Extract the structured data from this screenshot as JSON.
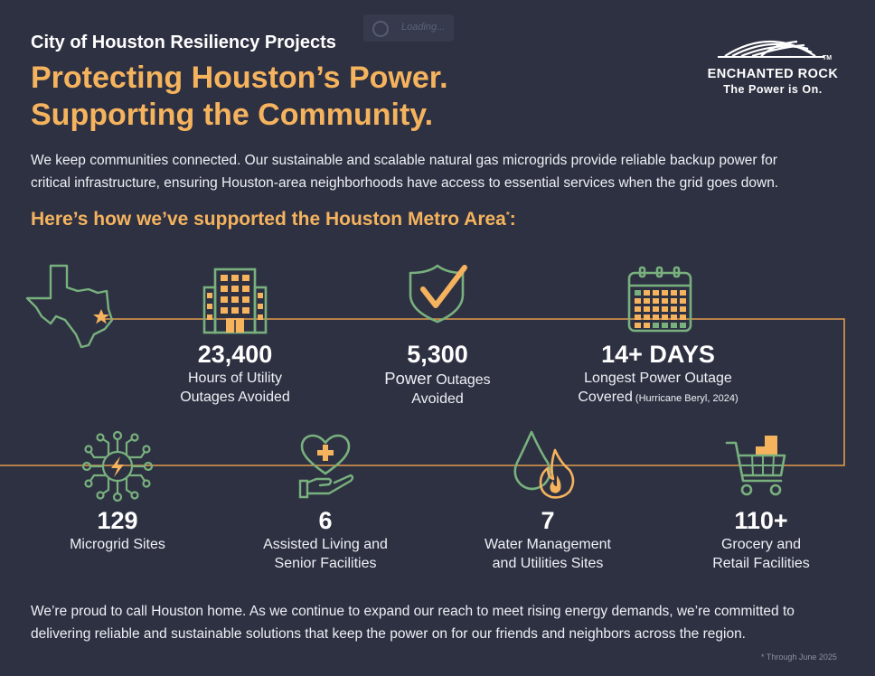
{
  "loading_text": "Loading...",
  "eyebrow": "City of Houston Resiliency Projects",
  "headline": {
    "line1": "Protecting Houston’s Power.",
    "line2": "Supporting the Community."
  },
  "intro": {
    "line1": "We keep communities connected. Our sustainable and scalable natural gas microgrids provide reliable backup power for",
    "line2": "critical infrastructure, ensuring Houston-area neighborhoods have access to essential services when the grid goes down."
  },
  "subhead": {
    "text": "Here’s how we’ve supported the Houston Metro Area",
    "asterisk": "*",
    "colon": ":"
  },
  "logo": {
    "name": "ENCHANTED ROCK",
    "tm": "TM",
    "tagline": "The Power is On."
  },
  "stats": {
    "outage_hours": {
      "number": "23,400",
      "line1": "Hours of Utility",
      "line2": "Outages Avoided"
    },
    "power_outages": {
      "number": "5,300",
      "line1_a": "Power",
      "line1_b": " Outages",
      "line2": "Avoided"
    },
    "longest_outage": {
      "number": "14+ DAYS",
      "line1": "Longest Power Outage",
      "line2_a": "Covered",
      "line2_b": " (Hurricane Beryl, 2024)"
    },
    "microgrid_sites": {
      "number": "129",
      "line1": "Microgrid Sites"
    },
    "assisted_living": {
      "number": "6",
      "line1": "Assisted Living and",
      "line2": "Senior Facilities"
    },
    "water_management": {
      "number": "7",
      "line1": "Water Management",
      "line2": "and Utilities Sites"
    },
    "grocery_retail": {
      "number": "110+",
      "line1": "Grocery and",
      "line2": "Retail Facilities"
    }
  },
  "closing": {
    "line1": "We’re proud to call Houston home. As we continue to expand our reach to meet rising energy demands, we’re committed to",
    "line2": "delivering reliable and sustainable solutions that keep the power on for our friends and neighbors across the region."
  },
  "footnote": "* Through June 2025",
  "colors": {
    "background": "#2e3142",
    "accent_orange": "#f5b35e",
    "icon_green": "#78b17e",
    "text_white": "#ffffff"
  },
  "icons": [
    "texas-map-icon",
    "building-icon",
    "shield-check-icon",
    "calendar-icon",
    "microgrid-icon",
    "heart-hand-icon",
    "water-fire-icon",
    "grocery-cart-icon"
  ]
}
